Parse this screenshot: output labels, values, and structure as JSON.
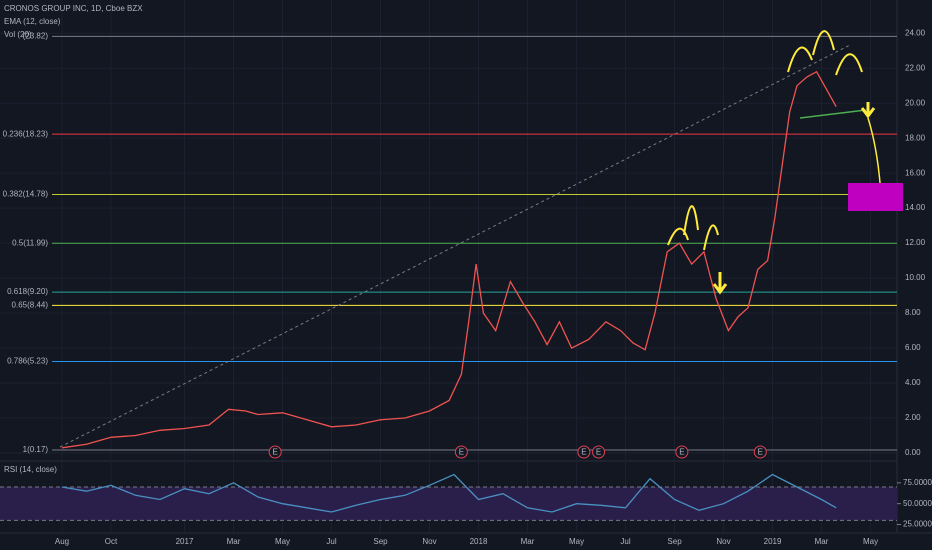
{
  "chart_data": {
    "type": "line",
    "title": "CRONOS GROUP INC, 1D, Cboe BZX",
    "indicators": [
      "EMA (12, close)",
      "Vol (20)"
    ],
    "x": [
      0,
      1,
      2,
      3,
      4,
      5,
      6,
      6.8,
      7.5,
      8,
      9,
      10,
      11,
      12,
      13,
      14,
      15,
      15.8,
      16.3,
      16.6,
      16.9,
      17.2,
      17.7,
      18.3,
      18.8,
      19.3,
      19.8,
      20.3,
      20.8,
      21.5,
      22.2,
      22.8,
      23.3,
      23.8,
      24.2,
      24.7,
      25.2,
      25.7,
      26.2,
      26.7,
      27.2,
      27.6,
      28,
      28.4,
      28.8,
      29.1,
      29.4,
      29.7,
      30,
      30.4,
      30.8,
      31.2,
      31.6
    ],
    "series": [
      {
        "color": "#ef5350",
        "values": [
          0.3,
          0.5,
          0.9,
          1.0,
          1.3,
          1.4,
          1.6,
          2.5,
          2.4,
          2.2,
          2.3,
          1.9,
          1.5,
          1.6,
          1.9,
          2.0,
          2.4,
          3.0,
          4.5,
          7.5,
          10.8,
          8.0,
          7.0,
          9.8,
          8.6,
          7.5,
          6.2,
          7.5,
          6.0,
          6.5,
          7.5,
          7.0,
          6.3,
          5.9,
          8.0,
          11.5,
          12.0,
          10.8,
          11.5,
          8.8,
          7.0,
          7.8,
          8.3,
          10.5,
          11.0,
          13.5,
          16.5,
          19.5,
          21.0,
          21.5,
          21.8,
          20.8,
          19.8
        ]
      }
    ],
    "xlim": [
      -2.53,
      34.08
    ],
    "ylim": [
      -0.4,
      25.9
    ],
    "xticks": [
      {
        "value": 0,
        "label": "Aug"
      },
      {
        "value": 2,
        "label": "Oct"
      },
      {
        "value": 5,
        "label": "2017"
      },
      {
        "value": 7,
        "label": "Mar"
      },
      {
        "value": 9,
        "label": "May"
      },
      {
        "value": 11,
        "label": "Jul"
      },
      {
        "value": 13,
        "label": "Sep"
      },
      {
        "value": 15,
        "label": "Nov"
      },
      {
        "value": 17,
        "label": "2018"
      },
      {
        "value": 19,
        "label": "Mar"
      },
      {
        "value": 21,
        "label": "May"
      },
      {
        "value": 23,
        "label": "Jul"
      },
      {
        "value": 25,
        "label": "Sep"
      },
      {
        "value": 27,
        "label": "Nov"
      },
      {
        "value": 29,
        "label": "2019"
      },
      {
        "value": 31,
        "label": "Mar"
      },
      {
        "value": 33,
        "label": "May"
      }
    ],
    "yticks": [
      {
        "value": 0,
        "label": "0.00"
      },
      {
        "value": 2,
        "label": "2.00"
      },
      {
        "value": 4,
        "label": "4.00"
      },
      {
        "value": 6,
        "label": "6.00"
      },
      {
        "value": 8,
        "label": "8.00"
      },
      {
        "value": 10,
        "label": "10.00"
      },
      {
        "value": 12,
        "label": "12.00"
      },
      {
        "value": 14,
        "label": "14.00"
      },
      {
        "value": 16,
        "label": "16.00"
      },
      {
        "value": 18,
        "label": "18.00"
      },
      {
        "value": 20,
        "label": "20.00"
      },
      {
        "value": 22,
        "label": "22.00"
      },
      {
        "value": 24,
        "label": "24.00"
      }
    ],
    "grid": true,
    "fib_levels": [
      {
        "value": 23.82,
        "label": "(23.82)",
        "color": "#787b86"
      },
      {
        "value": 18.23,
        "label": "0.236(18.23)",
        "color": "#f23645"
      },
      {
        "value": 14.78,
        "label": "0.382(14.78)",
        "color": "#c0ca33"
      },
      {
        "value": 11.99,
        "label": "0.5(11.99)",
        "color": "#4caf50"
      },
      {
        "value": 9.2,
        "label": "0.618(9.20)",
        "color": "#26a69a"
      },
      {
        "value": 8.44,
        "label": "0.65(8.44)",
        "color": "#ffeb3b"
      },
      {
        "value": 5.23,
        "label": "0.786(5.23)",
        "color": "#2196f3"
      },
      {
        "value": 0.17,
        "label": "1(0.17)",
        "color": "#787b86"
      }
    ],
    "events": [
      {
        "x": 8.7,
        "label": "E"
      },
      {
        "x": 16.3,
        "label": "E"
      },
      {
        "x": 21.3,
        "label": "E"
      },
      {
        "x": 21.9,
        "label": "E"
      },
      {
        "x": 25.3,
        "label": "E"
      },
      {
        "x": 28.5,
        "label": "E"
      }
    ],
    "rsi": {
      "title": "RSI (14, close)",
      "color": "#4a90c2",
      "x": [
        0,
        1,
        2,
        3,
        4,
        5,
        6,
        7,
        8,
        9,
        10,
        11,
        12,
        13,
        14,
        15,
        16,
        17,
        18,
        19,
        20,
        21,
        22,
        23,
        24,
        25,
        26,
        27,
        28,
        29,
        30,
        31,
        31.6
      ],
      "values": [
        70,
        65,
        72,
        60,
        55,
        68,
        62,
        75,
        58,
        50,
        45,
        40,
        48,
        55,
        60,
        72,
        85,
        55,
        62,
        45,
        40,
        50,
        48,
        45,
        80,
        55,
        42,
        50,
        65,
        85,
        70,
        55,
        45
      ],
      "ylim": [
        16,
        100
      ],
      "yticks": [
        {
          "value": 75,
          "label": "75.0000"
        },
        {
          "value": 50,
          "label": "50.0000"
        },
        {
          "value": 25,
          "label": "25.0000"
        }
      ],
      "band": [
        30,
        70
      ]
    }
  }
}
